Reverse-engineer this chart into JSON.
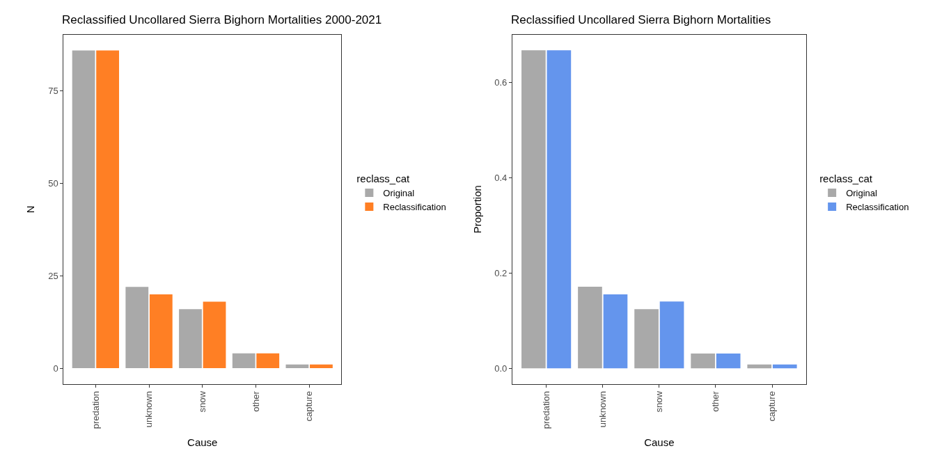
{
  "chart_data": [
    {
      "type": "bar",
      "title": "Reclassified Uncollared Sierra Bighorn Mortalities 2000-2021",
      "xlabel": "Cause",
      "ylabel": "N",
      "legend_title": "reclass_cat",
      "legend": "right",
      "categories": [
        "predation",
        "unknown",
        "snow",
        "other",
        "capture"
      ],
      "series": [
        {
          "name": "Original",
          "color": "#a9a9a9",
          "values": [
            86,
            22,
            16,
            4,
            1
          ]
        },
        {
          "name": "Reclassification",
          "color": "#ff7f24",
          "values": [
            86,
            20,
            18,
            4,
            1
          ]
        }
      ],
      "ylim": [
        -4.3,
        90.3
      ],
      "yticks": [
        0,
        25,
        50,
        75
      ]
    },
    {
      "type": "bar",
      "title": "Reclassified Uncollared Sierra Bighorn Mortalities",
      "xlabel": "Cause",
      "ylabel": "Proportion",
      "legend_title": "reclass_cat",
      "legend": "right",
      "categories": [
        "predation",
        "unknown",
        "snow",
        "other",
        "capture"
      ],
      "series": [
        {
          "name": "Original",
          "color": "#a9a9a9",
          "values": [
            0.667,
            0.171,
            0.124,
            0.031,
            0.008
          ]
        },
        {
          "name": "Reclassification",
          "color": "#6495ed",
          "values": [
            0.667,
            0.155,
            0.14,
            0.031,
            0.008
          ]
        }
      ],
      "ylim": [
        -0.0333,
        0.7
      ],
      "yticks": [
        {
          "value": 0,
          "label": "0.0"
        },
        {
          "value": 0.2,
          "label": "0.2"
        },
        {
          "value": 0.4,
          "label": "0.4"
        },
        {
          "value": 0.6,
          "label": "0.6"
        }
      ]
    }
  ]
}
